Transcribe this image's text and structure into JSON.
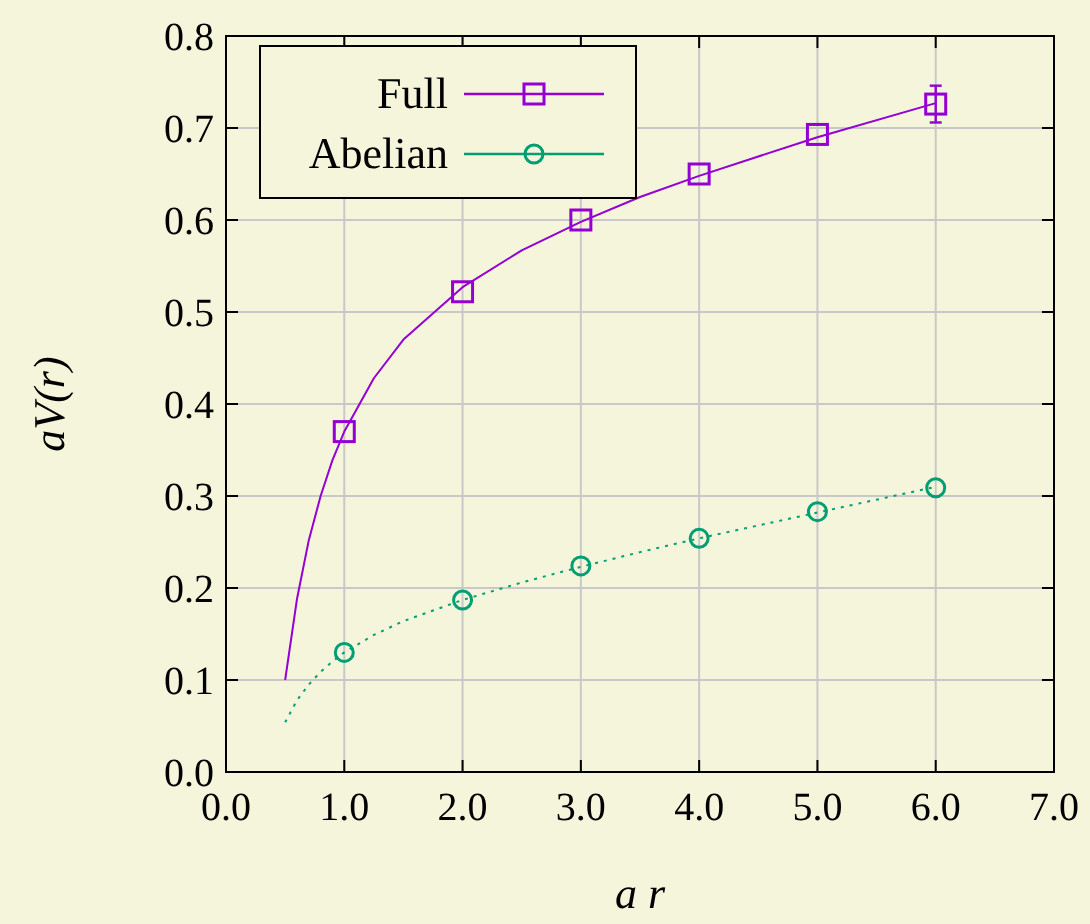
{
  "chart_data": {
    "type": "scatter",
    "xlabel": "a r",
    "ylabel": "aV(r)",
    "xlim": [
      0,
      7
    ],
    "ylim": [
      0,
      0.8
    ],
    "xticks": [
      {
        "value": 0,
        "label": "0.0"
      },
      {
        "value": 1,
        "label": "1.0"
      },
      {
        "value": 2,
        "label": "2.0"
      },
      {
        "value": 3,
        "label": "3.0"
      },
      {
        "value": 4,
        "label": "4.0"
      },
      {
        "value": 5,
        "label": "5.0"
      },
      {
        "value": 6,
        "label": "6.0"
      },
      {
        "value": 7,
        "label": "7.0"
      }
    ],
    "yticks": [
      {
        "value": 0,
        "label": "0.0"
      },
      0.1,
      0.2,
      0.3,
      0.4,
      0.5,
      0.6,
      0.7,
      0.8
    ],
    "grid": true,
    "legend": "top left",
    "series": [
      {
        "name": "Full",
        "type": "scatter",
        "color": "#9400d3",
        "marker": "square",
        "x": [
          1,
          2,
          3,
          4,
          5,
          6
        ],
        "values": [
          0.37,
          0.522,
          0.6,
          0.65,
          0.693,
          0.726
        ],
        "errors": [
          null,
          null,
          null,
          null,
          null,
          0.02
        ]
      },
      {
        "name": "Abelian",
        "type": "scatter",
        "color": "#009e73",
        "marker": "circle",
        "x": [
          1,
          2,
          3,
          4,
          5,
          6
        ],
        "values": [
          0.13,
          0.187,
          0.224,
          0.254,
          0.283,
          0.309
        ]
      },
      {
        "type": "line",
        "color": "#9400d3",
        "line_style": "solid",
        "x": [
          0.5,
          0.6,
          0.7,
          0.8,
          0.9,
          1,
          1.25,
          1.5,
          2,
          2.5,
          3,
          3.5,
          4,
          5,
          6
        ],
        "values": [
          0.1,
          0.188,
          0.252,
          0.3,
          0.339,
          0.37,
          0.428,
          0.47,
          0.527,
          0.567,
          0.598,
          0.625,
          0.648,
          0.69,
          0.727
        ]
      },
      {
        "type": "line",
        "color": "#009e73",
        "line_style": "dotted",
        "x": [
          0.5,
          0.6,
          0.7,
          0.8,
          0.9,
          1,
          1.25,
          1.5,
          2,
          2.5,
          3,
          3.5,
          4,
          5,
          6
        ],
        "values": [
          0.054,
          0.078,
          0.095,
          0.109,
          0.12,
          0.13,
          0.149,
          0.164,
          0.187,
          0.206,
          0.223,
          0.239,
          0.254,
          0.282,
          0.31
        ]
      }
    ]
  }
}
